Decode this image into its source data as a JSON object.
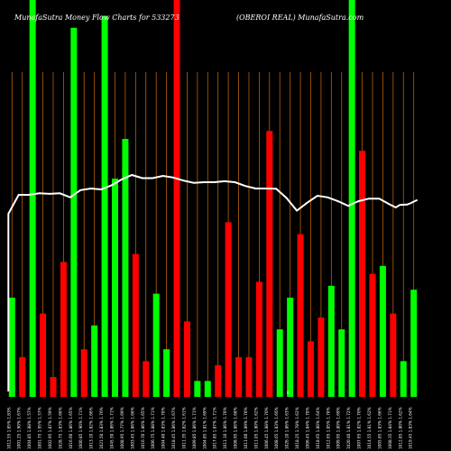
{
  "header": {
    "left": "MunafaSutra  Money Flow  Charts for 533273",
    "right": "(OBEROI REAL) MunafaSutra.com"
  },
  "colors": {
    "background": "#000000",
    "grid_line": "#b8600b",
    "up_bar": "#00ff00",
    "down_bar": "#ff0000",
    "price_line": "#ffffff",
    "text": "#ffffff"
  },
  "chart_data": {
    "type": "bar",
    "title": "MunafaSutra  Money Flow  Charts for 533273",
    "subtitle": "(OBEROI REAL) MunafaSutra.com",
    "series": [
      {
        "values": [
          0.25,
          0.1,
          1.0,
          0.21,
          0.05,
          0.34,
          0.93,
          0.12,
          0.18,
          0.96,
          0.55,
          0.65,
          0.36,
          0.09,
          0.26,
          0.12,
          1.0,
          0.19,
          0.04,
          0.04,
          0.08,
          0.44,
          0.1,
          0.1,
          0.29,
          0.67,
          0.17,
          0.25,
          0.41,
          0.14,
          0.2,
          0.28,
          0.17,
          1.0,
          0.62,
          0.31,
          0.33,
          0.21,
          0.09,
          0.27
        ],
        "colors": [
          "green",
          "red",
          "green",
          "red",
          "red",
          "red",
          "green",
          "red",
          "green",
          "green",
          "green",
          "green",
          "red",
          "red",
          "green",
          "green",
          "red",
          "red",
          "green",
          "green",
          "red",
          "red",
          "red",
          "red",
          "red",
          "red",
          "green",
          "green",
          "red",
          "red",
          "red",
          "green",
          "green",
          "green",
          "red",
          "red",
          "green",
          "red",
          "green",
          "green"
        ]
      },
      {
        "values": [
          0.58,
          0.64,
          0.64,
          0.645,
          0.643,
          0.645,
          0.632,
          0.655,
          0.66,
          0.657,
          0.67,
          0.689,
          0.703,
          0.693,
          0.693,
          0.7,
          0.695,
          0.685,
          0.678,
          0.68,
          0.68,
          0.683,
          0.68,
          0.668,
          0.66,
          0.66,
          0.659,
          0.63,
          0.59,
          0.615,
          0.637,
          0.632,
          0.62,
          0.605,
          0.61,
          0.62,
          0.628,
          0.628,
          0.61,
          0.6,
          0.608,
          0.609,
          0.613,
          0.624
        ],
        "x_index": [
          0,
          1,
          2,
          3,
          4,
          5,
          6,
          7,
          8,
          9,
          10,
          11,
          12,
          13,
          14,
          15,
          16,
          17,
          18,
          19,
          20,
          21,
          22,
          23,
          24,
          25,
          26,
          27,
          28,
          29,
          30,
          31,
          32,
          33,
          33.3,
          34,
          35,
          36,
          37,
          37.6,
          38,
          38.7,
          39,
          39.7
        ]
      }
    ],
    "x_tick_labels": [
      "1012.55 1.85% 1.83%",
      "1001.25 1.90% 1.67%",
      "1004.85 1.88% 1.57%",
      "1001.75 1.95% 1.57%",
      "1002.95 1.87% 1.59%",
      "1028.75 1.83% 1.66%",
      "1016.60 1.86% 1.65%",
      "1000.85 1.90% 1.71%",
      "1013.10 1.82% 1.66%",
      "1021.50 1.83% 1.76%",
      "1045.50 1.86% 1.71%",
      "1008.95 1.77% 1.69%",
      "1003.45 1.86% 1.66%",
      "1016.70 1.86% 1.65%",
      "1006.75 1.88% 1.71%",
      "1004.40 1.83% 1.70%",
      "1018.45 1.86% 1.67%",
      "1011.35 1.82% 1.61%",
      "1009.85 1.86% 1.71%",
      "1004.85 1.81% 1.69%",
      "1017.85 1.87% 1.71%",
      "1011.10 1.86% 1.70%",
      "1008.95 1.86% 1.68%",
      "1011.00 1.89% 1.70%",
      "1011.05 1.80% 1.62%",
      "1006.45 1.88% 1.70%",
      "1008.65 1.83% 1.66%",
      "1026.10 1.86% 1.63%",
      "1018.25 1.78% 1.62%",
      "1006.45 1.84% 1.70%",
      "1018.65 1.80% 1.64%",
      "1012.65 1.85% 1.70%",
      "1009.95 1.80% 1.69%",
      "1020.40 1.81% 1.72%",
      "1007.65 1.82% 1.70%",
      "1014.55 1.81% 1.62%",
      "1005.85 1.83% 1.66%",
      "1008.35 1.84% 1.71%",
      "1012.85 1.80% 1.62%",
      "1019.45 1.83% 1.64%"
    ],
    "center_mark": "0",
    "grid": true
  }
}
